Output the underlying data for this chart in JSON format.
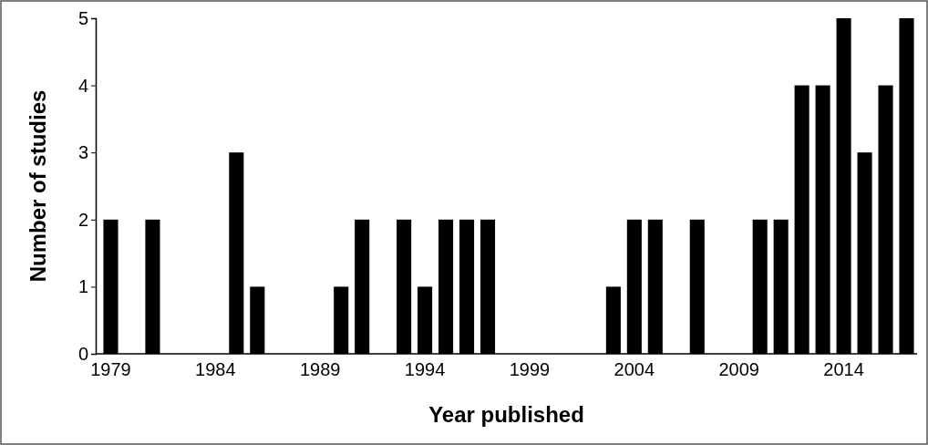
{
  "chart_data": {
    "type": "bar",
    "xlabel": "Year published",
    "ylabel": "Number of studies",
    "categories": [
      "1979",
      null,
      null,
      null,
      null,
      "1984",
      null,
      null,
      null,
      null,
      "1989",
      null,
      null,
      null,
      null,
      "1994",
      null,
      null,
      null,
      null,
      "1999",
      null,
      null,
      null,
      null,
      "2004",
      null,
      null,
      null,
      null,
      "2009",
      null,
      null,
      null,
      null,
      "2014",
      null,
      null,
      null
    ],
    "values": [
      2,
      0,
      2,
      0,
      0,
      0,
      3,
      1,
      0,
      0,
      0,
      1,
      2,
      0,
      2,
      1,
      2,
      2,
      2,
      0,
      0,
      0,
      0,
      0,
      1,
      2,
      2,
      0,
      2,
      0,
      0,
      2,
      2,
      4,
      4,
      5,
      3,
      4,
      5
    ],
    "color": "#000000",
    "ylim": [
      0,
      5
    ],
    "yticks": [
      0,
      1,
      2,
      3,
      4,
      5
    ],
    "grid": false
  }
}
